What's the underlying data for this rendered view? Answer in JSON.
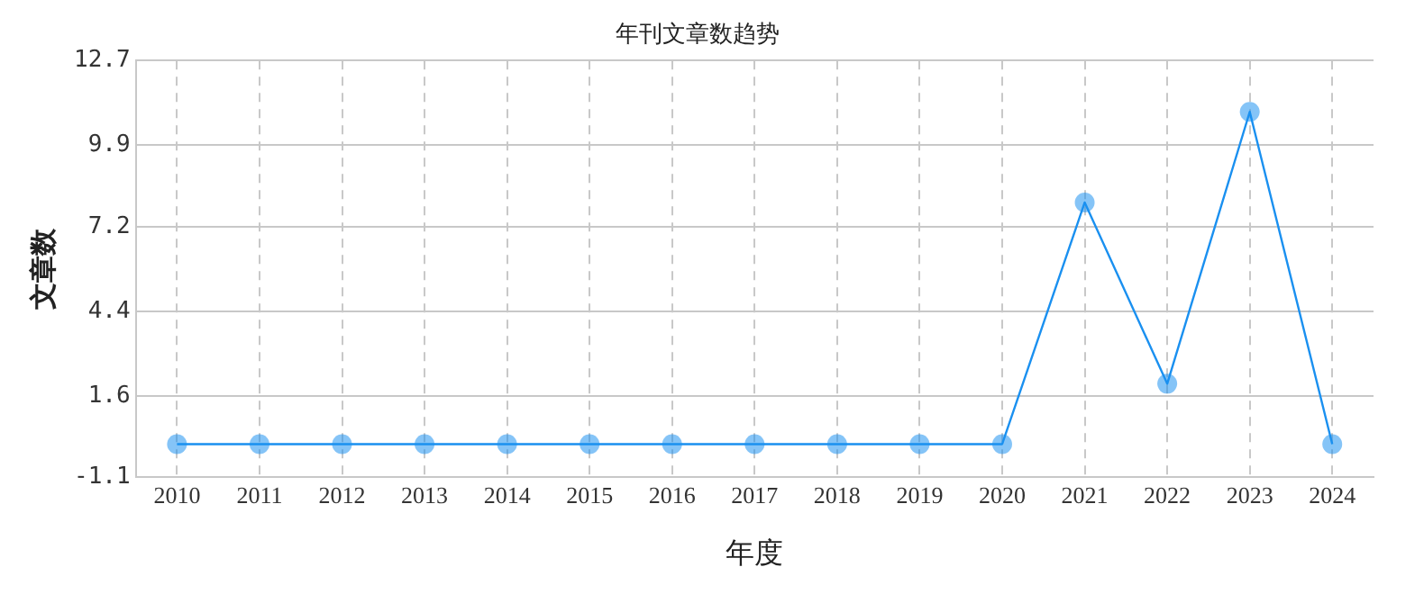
{
  "chart_data": {
    "type": "line",
    "title": "年刊文章数趋势",
    "xlabel": "年度",
    "ylabel": "文章数",
    "categories": [
      "2010",
      "2011",
      "2012",
      "2013",
      "2014",
      "2015",
      "2016",
      "2017",
      "2018",
      "2019",
      "2020",
      "2021",
      "2022",
      "2023",
      "2024"
    ],
    "series": [
      {
        "color": "#1a90f0",
        "values": [
          0,
          0,
          0,
          0,
          0,
          0,
          0,
          0,
          0,
          0,
          0,
          8,
          2,
          11,
          0
        ]
      }
    ],
    "ylim": [
      -1.1,
      12.7
    ],
    "yticks": [
      -1.1,
      1.6,
      4.4,
      7.2,
      9.9,
      12.7
    ],
    "grid": true,
    "marker": "circle",
    "line_style": "solid",
    "legend": false
  }
}
